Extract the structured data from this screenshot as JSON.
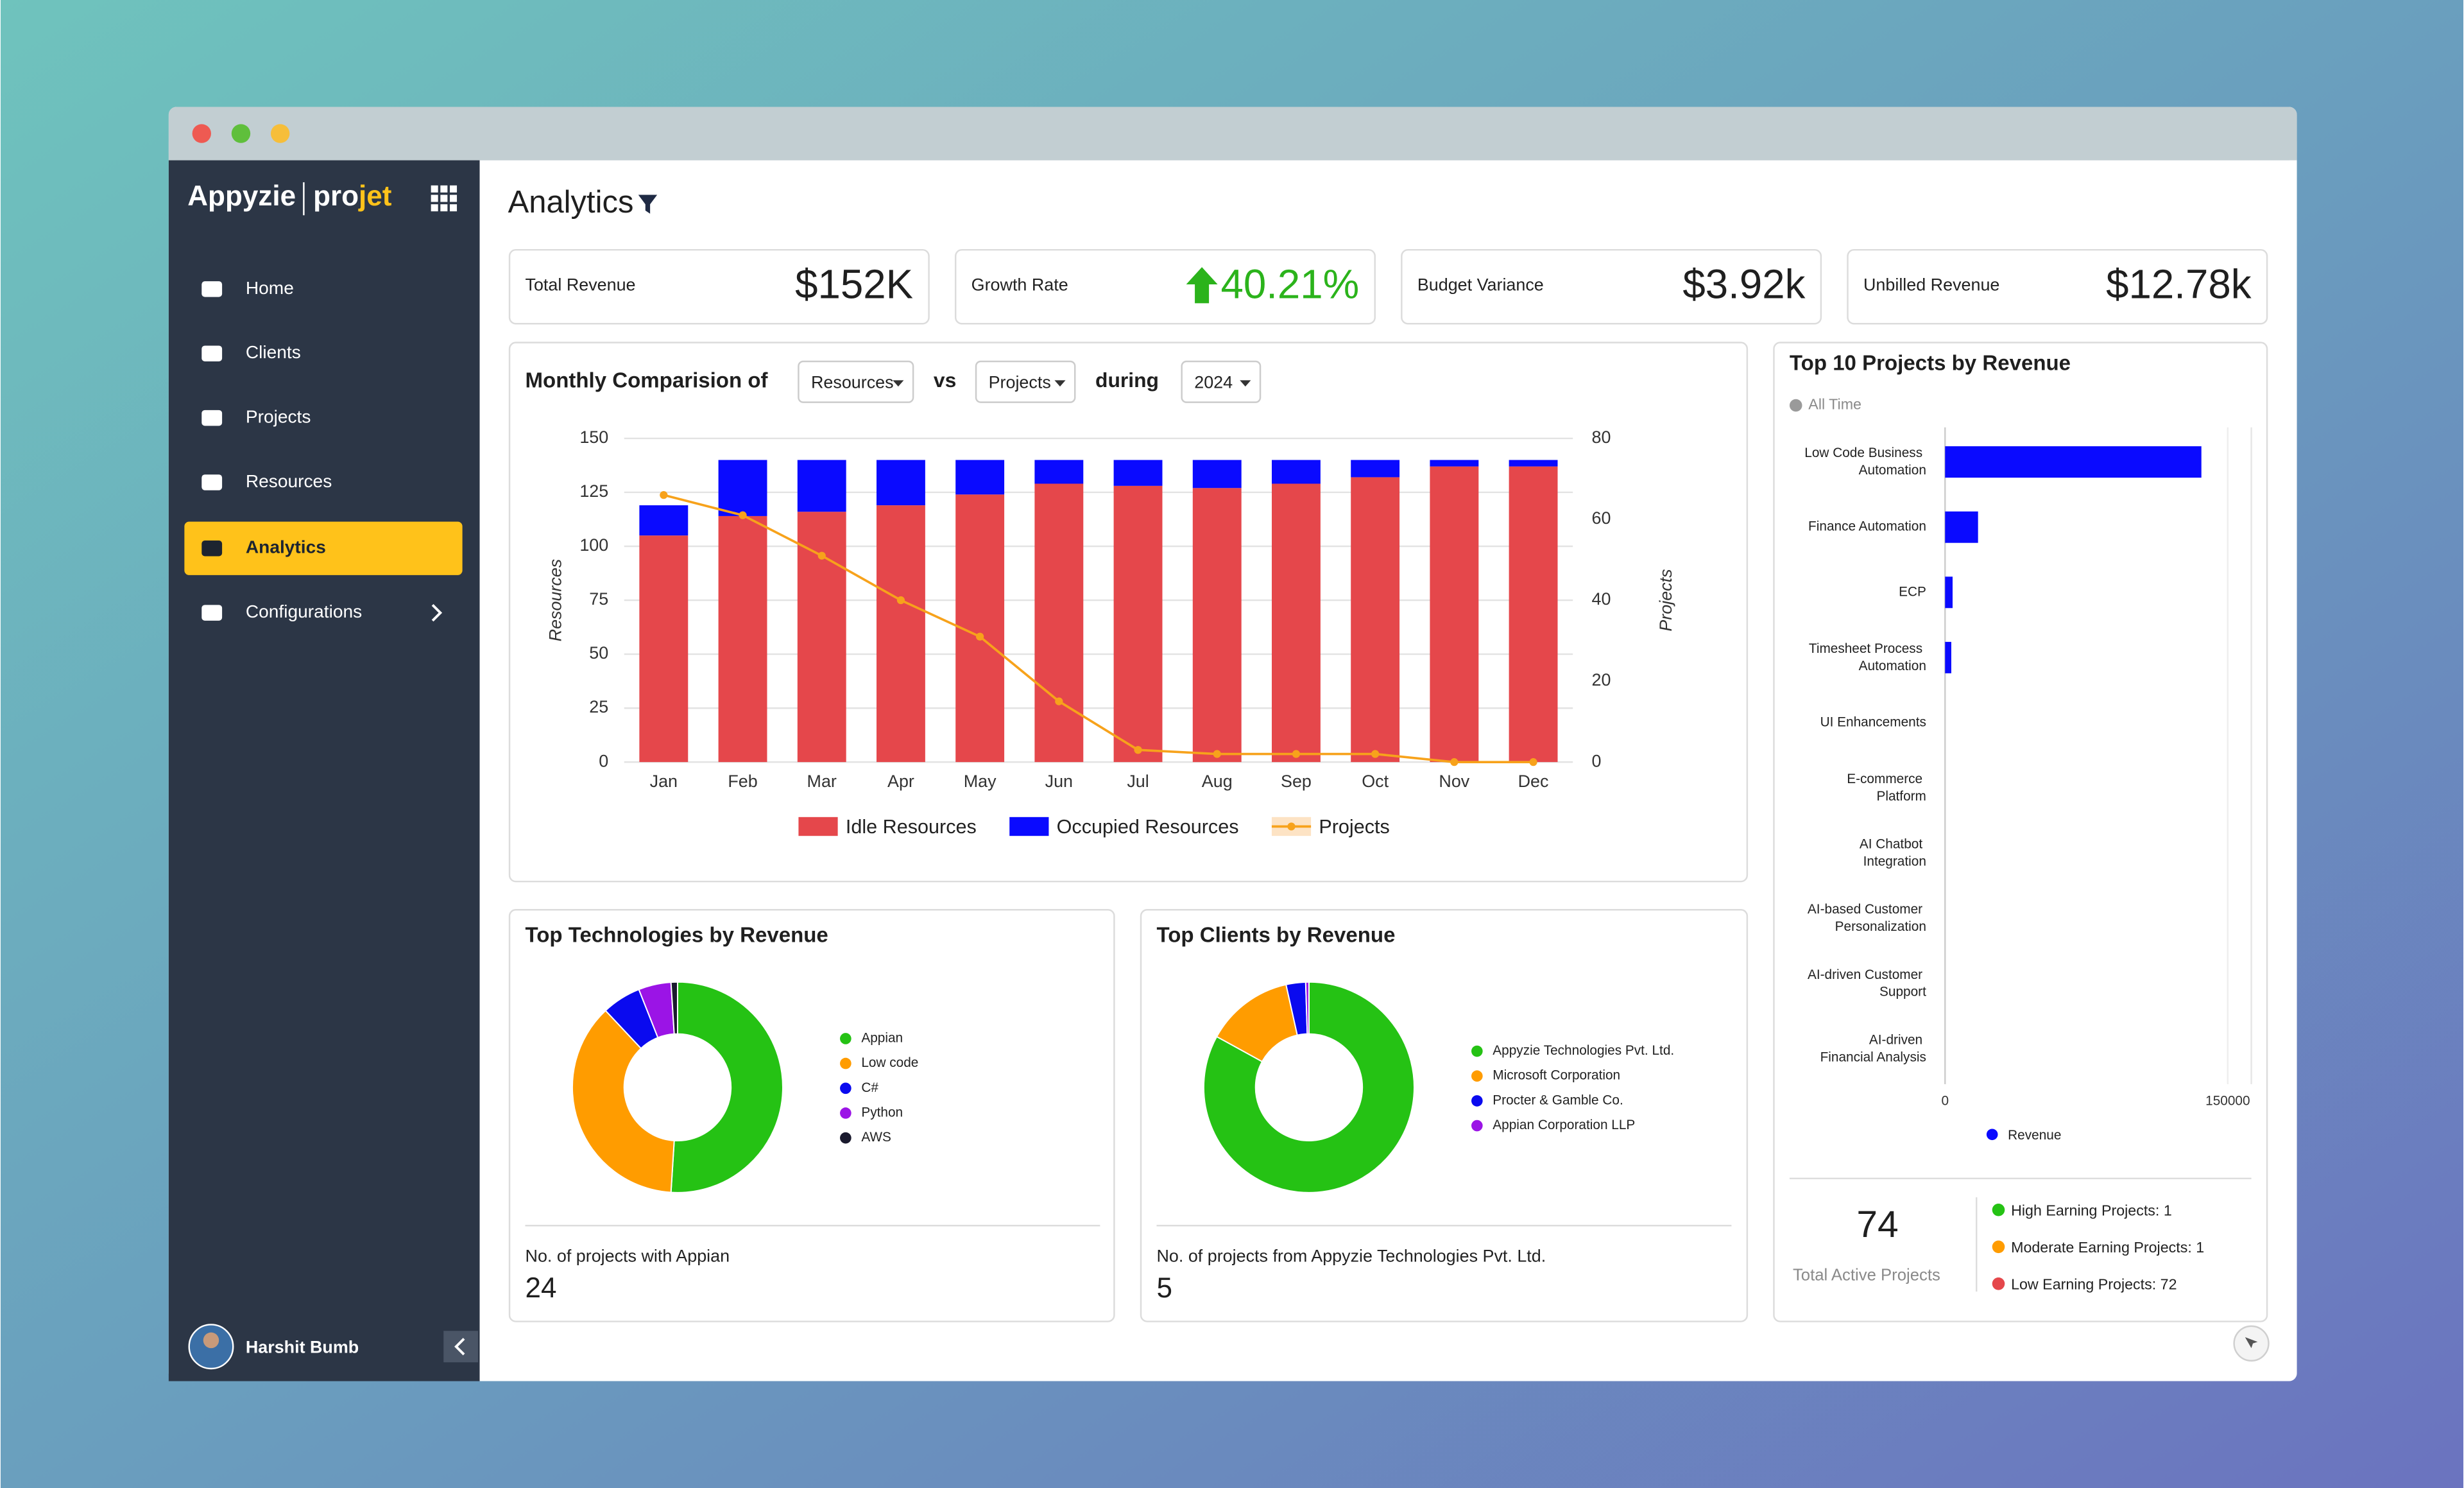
{
  "sidebar": {
    "logo": {
      "brand": "Appyzie",
      "product_start": "pro",
      "product_end": "jet"
    },
    "nav": [
      "Home",
      "Clients",
      "Projects",
      "Resources",
      "Analytics",
      "Configurations"
    ],
    "user": "Harshit Bumb"
  },
  "header": {
    "title": "Analytics"
  },
  "kpis": [
    {
      "label": "Total Revenue",
      "value": "$152K"
    },
    {
      "label": "Growth Rate",
      "value": "40.21%"
    },
    {
      "label": "Budget Variance",
      "value": "$3.92k"
    },
    {
      "label": "Unbilled Revenue",
      "value": "$12.78k"
    }
  ],
  "monthly_controls": {
    "metric_a": "Resources",
    "connector": "vs",
    "metric_b": "Projects",
    "during": "during",
    "year": "2024"
  },
  "chart_data": [
    {
      "type": "bar",
      "title": "Monthly Comparision of",
      "stacked": true,
      "grid": true,
      "categories": [
        "Jan",
        "Feb",
        "Mar",
        "Apr",
        "May",
        "Jun",
        "Jul",
        "Aug",
        "Sep",
        "Oct",
        "Nov",
        "Dec"
      ],
      "series": [
        {
          "name": "Idle Resources",
          "color": "#e5474b",
          "values": [
            105,
            114,
            116,
            119,
            124,
            129,
            128,
            127,
            129,
            132,
            137,
            137
          ]
        },
        {
          "name": "Occupied Resources",
          "color": "#0a0aff",
          "values": [
            14,
            26,
            24,
            21,
            16,
            11,
            12,
            13,
            11,
            8,
            3,
            3
          ]
        },
        {
          "name": "Projects",
          "type": "line",
          "axis": "y2",
          "color": "#f7a21b",
          "values": [
            66,
            61,
            51,
            40,
            31,
            15,
            3,
            2,
            2,
            2,
            0,
            0
          ]
        }
      ],
      "ylabel": "Resources",
      "y2label": "Projects",
      "ylim": [
        0,
        150
      ],
      "yticks": [
        0,
        25,
        50,
        75,
        100,
        125,
        150
      ],
      "y2lim": [
        0,
        80
      ],
      "y2ticks": [
        0,
        20,
        40,
        60,
        80
      ]
    },
    {
      "type": "pie",
      "title": "Top Technologies by Revenue",
      "categories": [
        "Appian",
        "Low code",
        "C#",
        "Python",
        "AWS"
      ],
      "values": [
        51,
        37,
        6,
        5,
        1
      ],
      "colors": [
        "#25c214",
        "#ff9c00",
        "#0a0aef",
        "#9b14e6",
        "#1a1a2e"
      ],
      "summary_label": "No. of projects with Appian",
      "summary_value": 24
    },
    {
      "type": "pie",
      "title": "Top Clients by Revenue",
      "categories": [
        "Appyzie Technologies Pvt. Ltd.",
        "Microsoft Corporation",
        "Procter & Gamble Co.",
        "Appian Corporation LLP"
      ],
      "values": [
        83,
        13.5,
        3,
        0.5
      ],
      "colors": [
        "#25c214",
        "#ff9c00",
        "#0a0aef",
        "#9b14e6"
      ],
      "summary_label": "No. of projects from Appyzie Technologies Pvt. Ltd.",
      "summary_value": 5
    },
    {
      "type": "barh",
      "title": "Top 10 Projects by Revenue",
      "subtitle": "All Time",
      "categories": [
        "Low Code Business Automation",
        "Finance Automation",
        "ECP",
        "Timesheet Process Automation",
        "UI Enhancements",
        "E-commerce Platform",
        "AI Chatbot Integration",
        "AI-based Customer Personalization",
        "AI-driven Customer Support",
        "AI-driven Financial Analysis"
      ],
      "series": [
        {
          "name": "Revenue",
          "color": "#0a0aff",
          "values": [
            136000,
            17500,
            4000,
            3300,
            0,
            0,
            0,
            0,
            0,
            0
          ]
        }
      ],
      "xlim": [
        0,
        150000
      ],
      "xticks": [
        0,
        150000
      ]
    }
  ],
  "project_summary": {
    "total": 74,
    "total_label": "Total Active Projects",
    "tiers": [
      {
        "label": "High Earning Projects: 1",
        "color": "#25c214"
      },
      {
        "label": "Moderate Earning Projects: 1",
        "color": "#ff9c00"
      },
      {
        "label": "Low Earning Projects: 72",
        "color": "#e5474b"
      }
    ]
  }
}
